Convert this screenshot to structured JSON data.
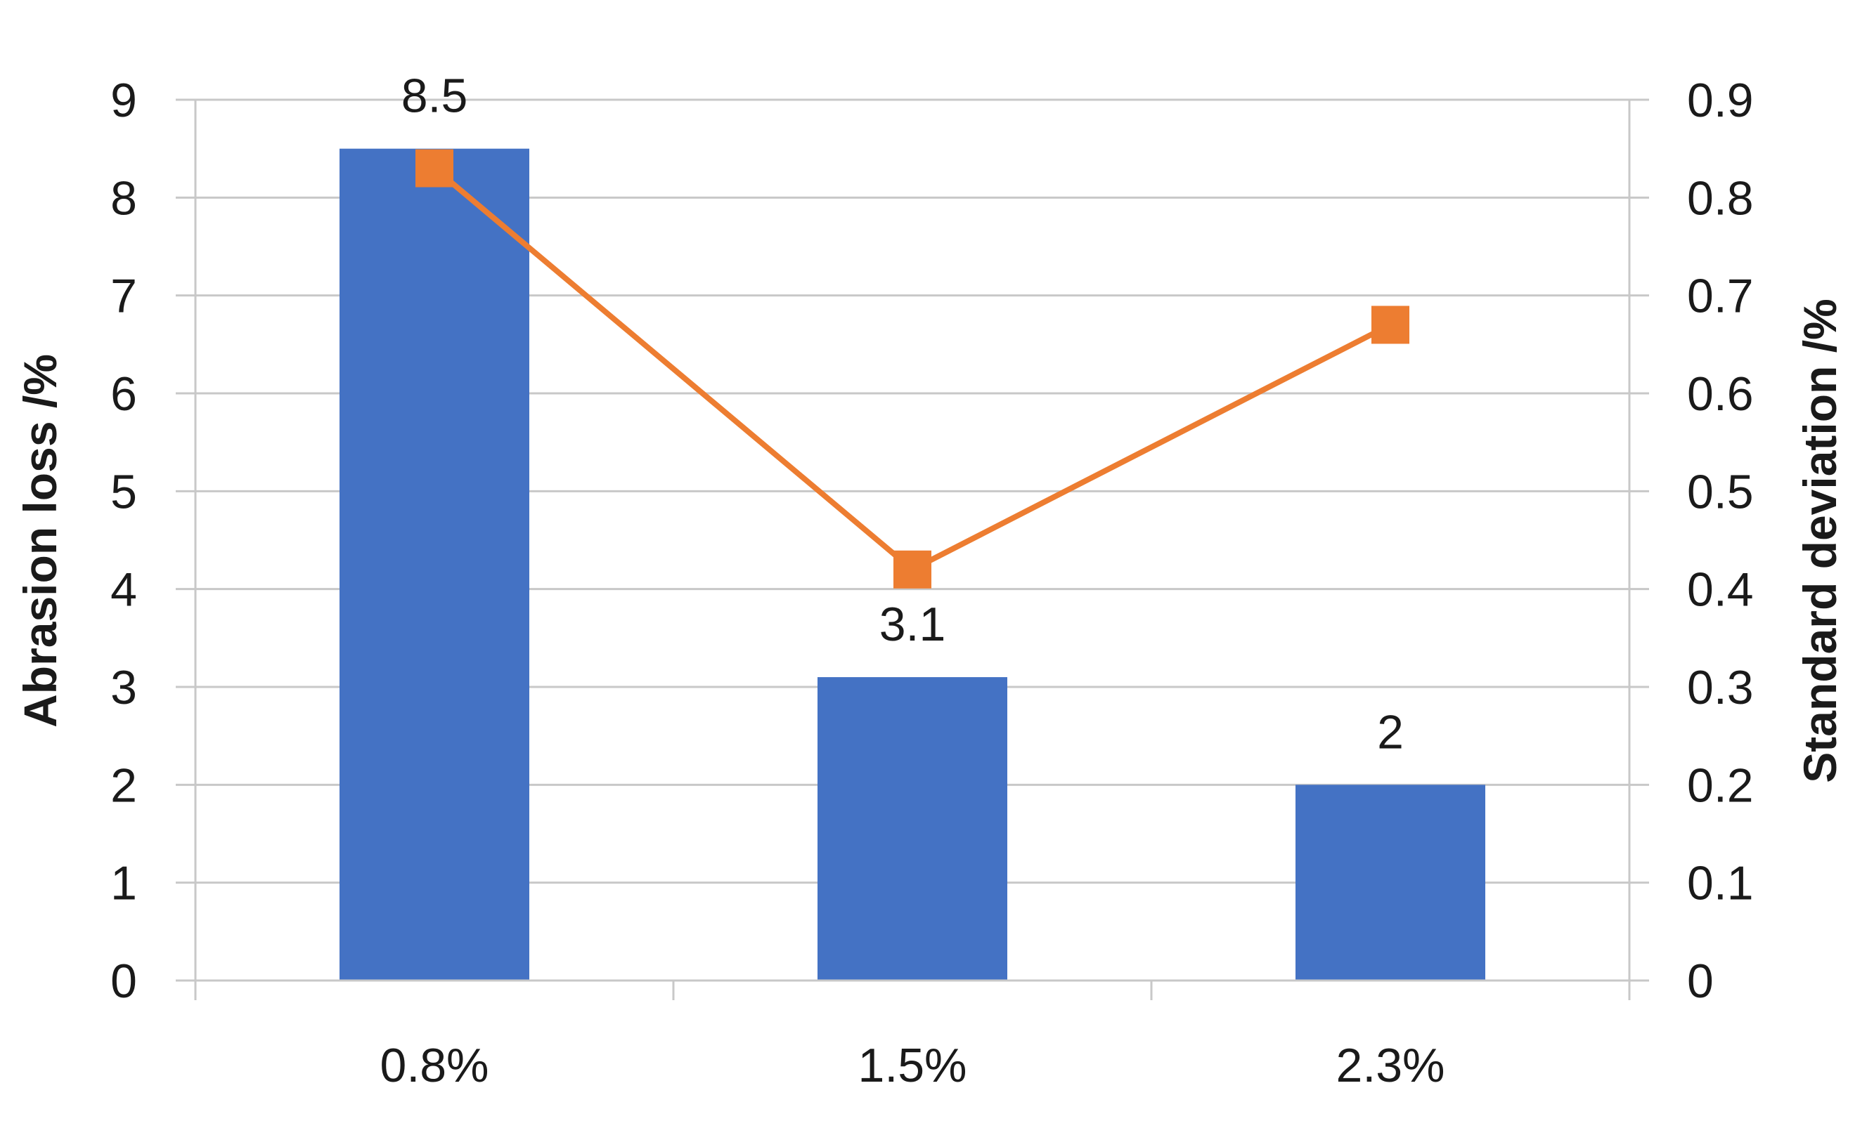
{
  "chart_data": {
    "type": "bar",
    "title": "",
    "categories": [
      "0.8%",
      "1.5%",
      "2.3%"
    ],
    "series": [
      {
        "axis": "left",
        "type": "bar",
        "values": [
          8.5,
          3.1,
          2
        ],
        "data_labels": [
          "8.5",
          "3.1",
          "2"
        ],
        "color": "#4472c4"
      },
      {
        "axis": "right",
        "type": "line",
        "marker": "square",
        "values": [
          0.83,
          0.42,
          0.67
        ],
        "color": "#ed7d31"
      }
    ],
    "xlabel": "",
    "ylabel": "Abrasion loss /%",
    "y2label": "Standard deviation /%",
    "ylim": [
      0,
      9
    ],
    "y2lim": [
      0,
      0.9
    ],
    "yticks": [
      "0",
      "1",
      "2",
      "3",
      "4",
      "5",
      "6",
      "7",
      "8",
      "9"
    ],
    "y2ticks": [
      "0",
      "0.1",
      "0.2",
      "0.3",
      "0.4",
      "0.5",
      "0.6",
      "0.7",
      "0.8",
      "0.9"
    ],
    "grid": true,
    "legend": "none"
  }
}
